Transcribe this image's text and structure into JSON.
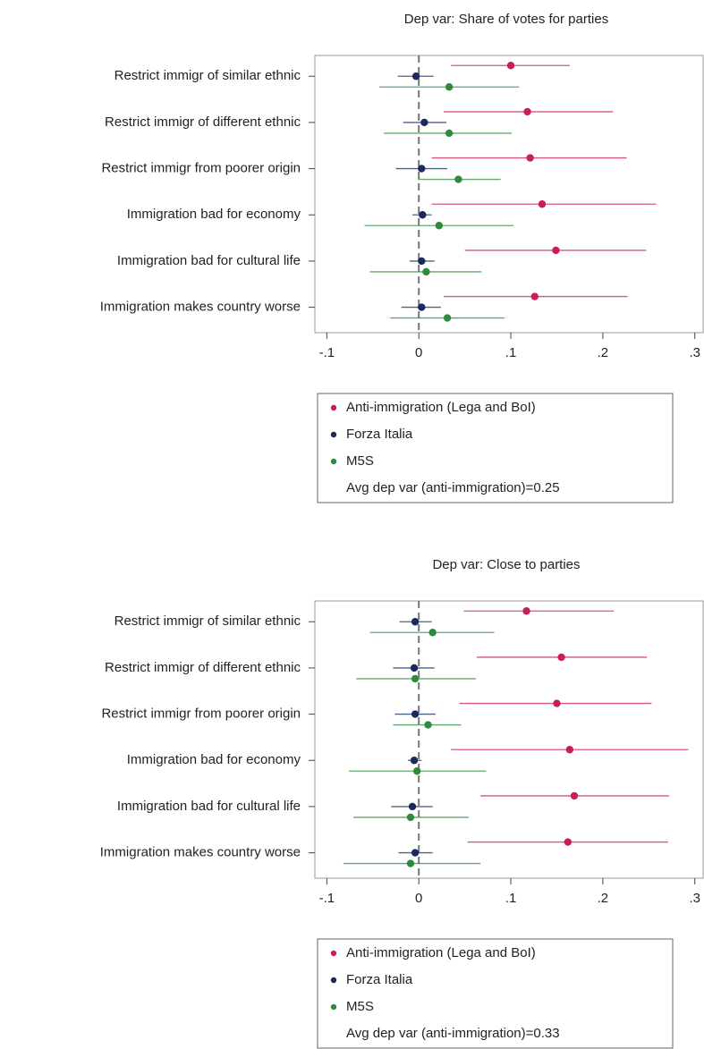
{
  "chart_data": [
    {
      "type": "coefplot",
      "title": "Dep var: Share of votes for parties",
      "categories": [
        "Restrict immigr of similar ethnic",
        "Restrict immigr of different ethnic",
        "Restrict immigr from poorer origin",
        "Immigration bad for economy",
        "Immigration bad for cultural life",
        "Immigration makes country worse"
      ],
      "series": [
        {
          "name": "Anti-immigration (Lega and BoI)",
          "color": "#c81f4f",
          "values": [
            0.1,
            0.118,
            0.121,
            0.134,
            0.149,
            0.126
          ],
          "lower": [
            0.035,
            0.027,
            0.014,
            0.014,
            0.05,
            0.027
          ],
          "upper": [
            0.164,
            0.211,
            0.226,
            0.258,
            0.247,
            0.227
          ]
        },
        {
          "name": "Forza Italia",
          "color": "#1b2a5c",
          "values": [
            -0.003,
            0.006,
            0.003,
            0.004,
            0.003,
            0.003
          ],
          "lower": [
            -0.023,
            -0.017,
            -0.025,
            -0.007,
            -0.01,
            -0.019
          ],
          "upper": [
            0.016,
            0.03,
            0.031,
            0.014,
            0.017,
            0.024
          ]
        },
        {
          "name": "M5S",
          "color": "#2e8b3c",
          "values": [
            0.033,
            0.033,
            0.043,
            0.022,
            0.008,
            0.031
          ],
          "lower": [
            -0.043,
            -0.038,
            -0.001,
            -0.059,
            -0.053,
            -0.031
          ],
          "upper": [
            0.109,
            0.101,
            0.089,
            0.103,
            0.068,
            0.093
          ]
        }
      ],
      "note": "Avg dep var (anti-immigration)=0.25",
      "xlim": [
        -0.113,
        0.31
      ],
      "xticks": [
        {
          "value": -0.1,
          "label": "-.1"
        },
        0,
        {
          "value": 0.1,
          "label": ".1"
        },
        {
          "value": 0.2,
          "label": ".2"
        },
        {
          "value": 0.3,
          "label": ".3"
        }
      ],
      "refline": 0
    },
    {
      "type": "coefplot",
      "title": "Dep var: Close to parties",
      "categories": [
        "Restrict immigr of similar ethnic",
        "Restrict immigr of different ethnic",
        "Restrict immigr from poorer origin",
        "Immigration bad for economy",
        "Immigration bad for cultural life",
        "Immigration makes country worse"
      ],
      "series": [
        {
          "name": "Anti-immigration (Lega and BoI)",
          "color": "#c81f4f",
          "values": [
            0.117,
            0.155,
            0.15,
            0.164,
            0.169,
            0.162
          ],
          "lower": [
            0.049,
            0.063,
            0.044,
            0.035,
            0.067,
            0.053
          ],
          "upper": [
            0.212,
            0.248,
            0.253,
            0.293,
            0.272,
            0.271
          ]
        },
        {
          "name": "Forza Italia",
          "color": "#1b2a5c",
          "values": [
            -0.004,
            -0.005,
            -0.004,
            -0.005,
            -0.007,
            -0.004
          ],
          "lower": [
            -0.021,
            -0.028,
            -0.026,
            -0.012,
            -0.03,
            -0.022
          ],
          "upper": [
            0.014,
            0.017,
            0.018,
            0.003,
            0.015,
            0.015
          ]
        },
        {
          "name": "M5S",
          "color": "#2e8b3c",
          "values": [
            0.015,
            -0.004,
            0.01,
            -0.002,
            -0.009,
            -0.009
          ],
          "lower": [
            -0.053,
            -0.068,
            -0.028,
            -0.076,
            -0.071,
            -0.082
          ],
          "upper": [
            0.082,
            0.062,
            0.046,
            0.073,
            0.054,
            0.067
          ]
        }
      ],
      "note": "Avg dep var (anti-immigration)=0.33",
      "xlim": [
        -0.113,
        0.31
      ],
      "xticks": [
        {
          "value": -0.1,
          "label": "-.1"
        },
        0,
        {
          "value": 0.1,
          "label": ".1"
        },
        {
          "value": 0.2,
          "label": ".2"
        },
        {
          "value": 0.3,
          "label": ".3"
        }
      ],
      "refline": 0
    }
  ]
}
